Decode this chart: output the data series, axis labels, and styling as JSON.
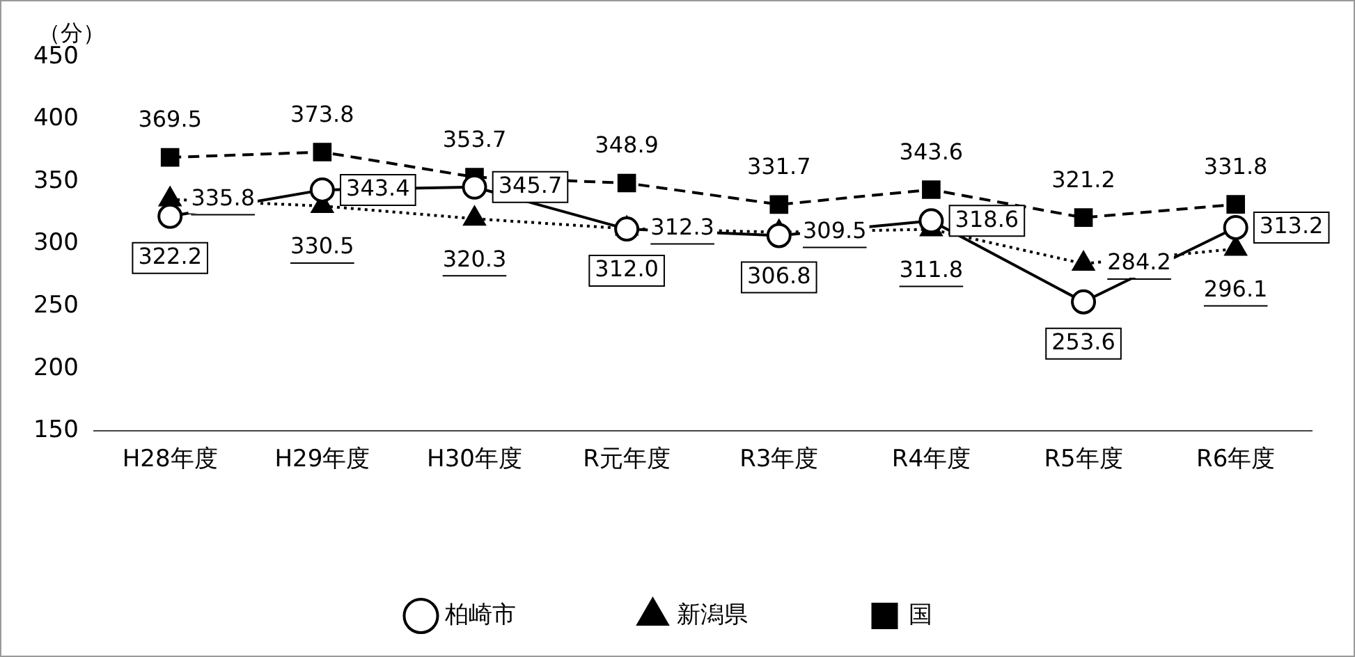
{
  "chart_data": {
    "type": "line",
    "ylabel": "（分）",
    "categories": [
      "H28年度",
      "H29年度",
      "H30年度",
      "R元年度",
      "R3年度",
      "R4年度",
      "R5年度",
      "R6年度"
    ],
    "ylim": [
      150,
      450
    ],
    "yticks": [
      150,
      200,
      250,
      300,
      350,
      400,
      450
    ],
    "grid": false,
    "legend": "bottom",
    "series": [
      {
        "name": "柏崎市",
        "color": "#000000",
        "marker": "circle",
        "line_style": "solid",
        "values": [
          322.2,
          343.4,
          345.7,
          312.0,
          306.8,
          318.6,
          253.6,
          313.2
        ],
        "value_labels": [
          "322.2",
          "343.4",
          "345.7",
          "312.0",
          "306.8",
          "318.6",
          "253.6",
          "313.2"
        ]
      },
      {
        "name": "新潟県",
        "color": "#000000",
        "marker": "triangle",
        "line_style": "dotted",
        "values": [
          335.8,
          330.5,
          320.3,
          312.3,
          309.5,
          311.8,
          284.2,
          296.1
        ],
        "value_labels": [
          "335.8",
          "330.5",
          "320.3",
          "312.3",
          "309.5",
          "311.8",
          "284.2",
          "296.1"
        ]
      },
      {
        "name": "国",
        "color": "#000000",
        "marker": "square",
        "line_style": "dashed",
        "values": [
          369.5,
          373.8,
          353.7,
          348.9,
          331.7,
          343.6,
          321.2,
          331.8
        ],
        "value_labels": [
          "369.5",
          "373.8",
          "353.7",
          "348.9",
          "331.7",
          "343.6",
          "321.2",
          "331.8"
        ]
      }
    ]
  }
}
